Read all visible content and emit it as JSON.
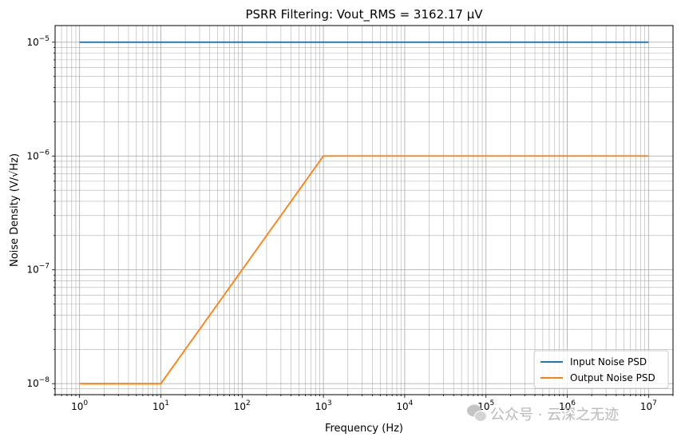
{
  "chart_data": {
    "type": "line",
    "title": "PSRR Filtering: Vout_RMS = 3162.17 μV",
    "xlabel": "Frequency (Hz)",
    "ylabel": "Noise Density (V/√Hz)",
    "xscale": "log",
    "yscale": "log",
    "xlim": [
      0.5,
      20000000
    ],
    "ylim": [
      8e-09,
      1.4e-05
    ],
    "grid": true,
    "legend_location": "lower-right",
    "x_ticks": [
      {
        "value": 1,
        "base": "10",
        "exp": "0"
      },
      {
        "value": 10,
        "base": "10",
        "exp": "1"
      },
      {
        "value": 100,
        "base": "10",
        "exp": "2"
      },
      {
        "value": 1000,
        "base": "10",
        "exp": "3"
      },
      {
        "value": 10000,
        "base": "10",
        "exp": "4"
      },
      {
        "value": 100000,
        "base": "10",
        "exp": "5"
      },
      {
        "value": 1000000,
        "base": "10",
        "exp": "6"
      },
      {
        "value": 10000000,
        "base": "10",
        "exp": "7"
      }
    ],
    "y_ticks": [
      {
        "value": 1e-08,
        "base": "10",
        "exp": "−8"
      },
      {
        "value": 1e-07,
        "base": "10",
        "exp": "−7"
      },
      {
        "value": 1e-06,
        "base": "10",
        "exp": "−6"
      },
      {
        "value": 1e-05,
        "base": "10",
        "exp": "−5"
      }
    ],
    "series": [
      {
        "name": "Input Noise PSD",
        "color": "#1f77b4",
        "x": [
          1,
          10000000
        ],
        "y": [
          1e-05,
          1e-05
        ]
      },
      {
        "name": "Output Noise PSD",
        "color": "#ff7f0e",
        "x": [
          1,
          10,
          1000,
          10000000
        ],
        "y": [
          1e-08,
          1e-08,
          1e-06,
          1e-06
        ]
      }
    ]
  },
  "watermark": {
    "text": "公众号 · 云深之无迹",
    "icon": "wechat-icon"
  }
}
